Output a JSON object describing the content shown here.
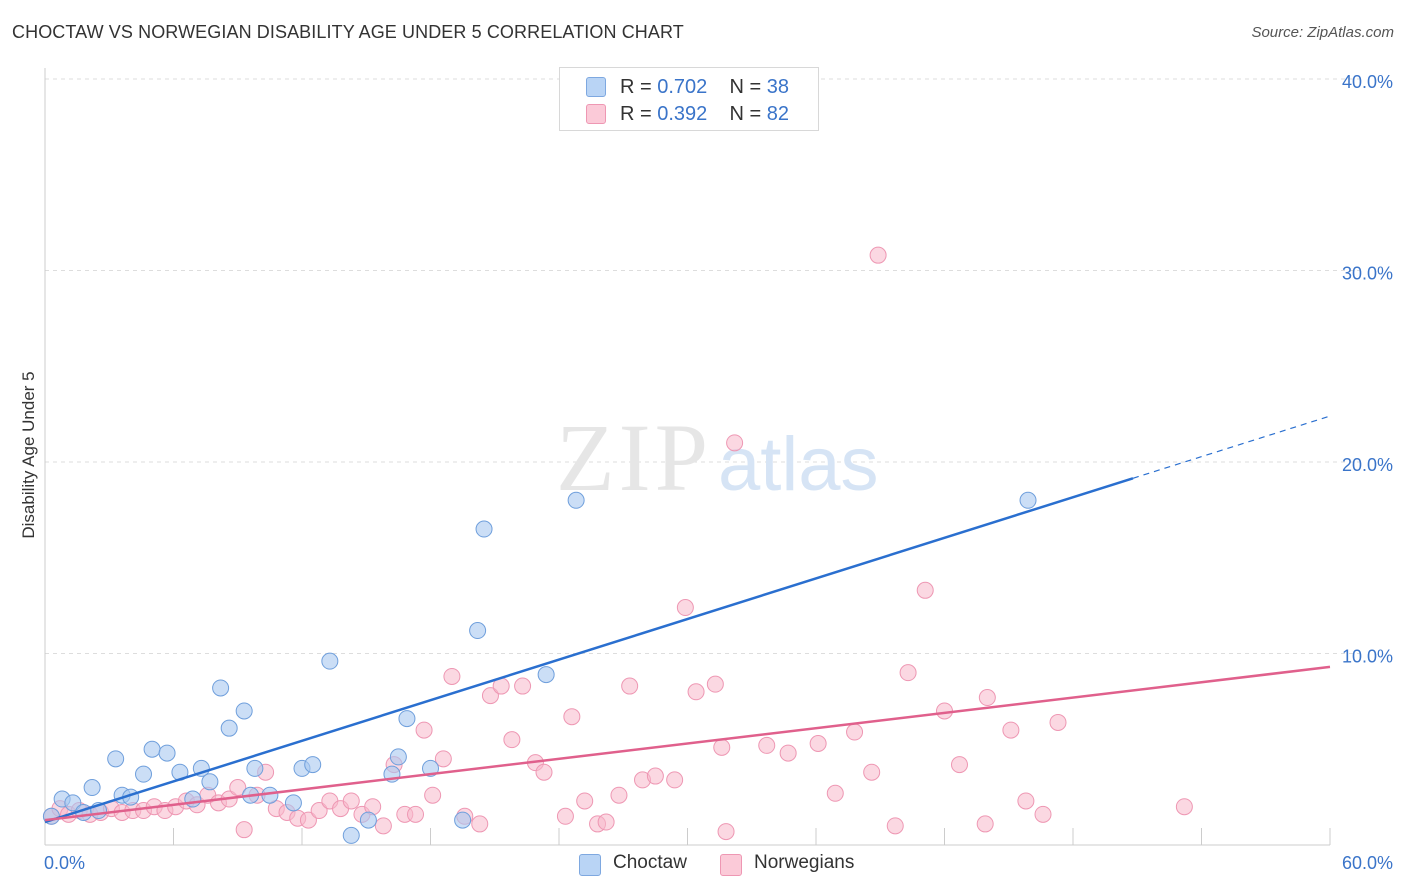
{
  "title": "CHOCTAW VS NORWEGIAN DISABILITY AGE UNDER 5 CORRELATION CHART",
  "source": "Source: ZipAtlas.com",
  "watermark": {
    "zip": "ZIP",
    "atlas": "atlas"
  },
  "legend": {
    "series1": {
      "r_label": "R = ",
      "r_value": "0.702",
      "n_label": "N = ",
      "n_value": "38"
    },
    "series2": {
      "r_label": "R = ",
      "r_value": "0.392",
      "n_label": "N = ",
      "n_value": "82"
    }
  },
  "chart_data": {
    "type": "scatter",
    "title": "CHOCTAW VS NORWEGIAN DISABILITY AGE UNDER 5 CORRELATION CHART",
    "xlabel": "",
    "ylabel": "Disability Age Under 5",
    "xlim": [
      0,
      60
    ],
    "ylim": [
      0,
      41
    ],
    "x_tick_labels": [
      "0.0%",
      "60.0%"
    ],
    "y_ticks": [
      10,
      20,
      30,
      40
    ],
    "y_tick_labels": [
      "10.0%",
      "20.0%",
      "30.0%",
      "40.0%"
    ],
    "colors": {
      "choctaw": "#a8c8f0",
      "choctaw_line": "#2a6fcf",
      "norwegians": "#f7b8cb",
      "norwegians_line": "#e0608c",
      "tick_label": "#3a74c9"
    },
    "series": [
      {
        "name": "Choctaw",
        "r": 0.702,
        "n": 38,
        "trend": {
          "x0": 0,
          "y0": 1.2,
          "x1": 60,
          "y1": 22.4,
          "solid_until_x": 50.8
        },
        "points": [
          [
            0.3,
            1.5
          ],
          [
            0.8,
            2.4
          ],
          [
            1.3,
            2.2
          ],
          [
            1.8,
            1.7
          ],
          [
            2.2,
            3.0
          ],
          [
            2.5,
            1.8
          ],
          [
            3.3,
            4.5
          ],
          [
            3.6,
            2.6
          ],
          [
            4.0,
            2.5
          ],
          [
            4.6,
            3.7
          ],
          [
            5.0,
            5.0
          ],
          [
            5.7,
            4.8
          ],
          [
            6.3,
            3.8
          ],
          [
            6.9,
            2.4
          ],
          [
            7.3,
            4.0
          ],
          [
            7.7,
            3.3
          ],
          [
            8.2,
            8.2
          ],
          [
            8.6,
            6.1
          ],
          [
            9.3,
            7.0
          ],
          [
            9.8,
            4.0
          ],
          [
            9.6,
            2.6
          ],
          [
            10.5,
            2.6
          ],
          [
            11.6,
            2.2
          ],
          [
            12.0,
            4.0
          ],
          [
            12.5,
            4.2
          ],
          [
            13.3,
            9.6
          ],
          [
            14.3,
            0.5
          ],
          [
            15.1,
            1.3
          ],
          [
            16.2,
            3.7
          ],
          [
            16.5,
            4.6
          ],
          [
            16.9,
            6.6
          ],
          [
            18.0,
            4.0
          ],
          [
            19.5,
            1.3
          ],
          [
            20.2,
            11.2
          ],
          [
            20.5,
            16.5
          ],
          [
            23.4,
            8.9
          ],
          [
            24.8,
            18.0
          ],
          [
            45.9,
            18.0
          ]
        ]
      },
      {
        "name": "Norwegians",
        "r": 0.392,
        "n": 82,
        "trend": {
          "x0": 0,
          "y0": 1.3,
          "x1": 60,
          "y1": 9.3
        },
        "points": [
          [
            0.3,
            1.5
          ],
          [
            0.7,
            1.9
          ],
          [
            1.1,
            1.6
          ],
          [
            1.6,
            1.8
          ],
          [
            2.1,
            1.6
          ],
          [
            2.6,
            1.7
          ],
          [
            3.1,
            1.9
          ],
          [
            3.6,
            1.7
          ],
          [
            4.1,
            1.8
          ],
          [
            4.6,
            1.8
          ],
          [
            5.1,
            2.0
          ],
          [
            5.6,
            1.8
          ],
          [
            6.1,
            2.0
          ],
          [
            6.6,
            2.3
          ],
          [
            7.1,
            2.1
          ],
          [
            7.6,
            2.6
          ],
          [
            8.1,
            2.2
          ],
          [
            8.6,
            2.4
          ],
          [
            9.0,
            3.0
          ],
          [
            9.3,
            0.8
          ],
          [
            9.9,
            2.6
          ],
          [
            10.3,
            3.8
          ],
          [
            10.8,
            1.9
          ],
          [
            11.3,
            1.7
          ],
          [
            11.8,
            1.4
          ],
          [
            12.3,
            1.3
          ],
          [
            12.8,
            1.8
          ],
          [
            13.3,
            2.3
          ],
          [
            13.8,
            1.9
          ],
          [
            14.3,
            2.3
          ],
          [
            14.8,
            1.6
          ],
          [
            15.3,
            2.0
          ],
          [
            15.8,
            1.0
          ],
          [
            16.3,
            4.2
          ],
          [
            16.8,
            1.6
          ],
          [
            17.3,
            1.6
          ],
          [
            17.7,
            6.0
          ],
          [
            18.1,
            2.6
          ],
          [
            18.6,
            4.5
          ],
          [
            19.0,
            8.8
          ],
          [
            19.6,
            1.5
          ],
          [
            20.3,
            1.1
          ],
          [
            20.8,
            7.8
          ],
          [
            21.3,
            8.3
          ],
          [
            21.8,
            5.5
          ],
          [
            22.3,
            8.3
          ],
          [
            22.9,
            4.3
          ],
          [
            23.3,
            3.8
          ],
          [
            24.3,
            1.5
          ],
          [
            24.6,
            6.7
          ],
          [
            25.2,
            2.3
          ],
          [
            25.8,
            1.1
          ],
          [
            26.2,
            1.2
          ],
          [
            26.8,
            2.6
          ],
          [
            27.3,
            8.3
          ],
          [
            27.9,
            3.4
          ],
          [
            28.5,
            3.6
          ],
          [
            29.4,
            3.4
          ],
          [
            29.9,
            12.4
          ],
          [
            30.4,
            8.0
          ],
          [
            31.3,
            8.4
          ],
          [
            31.6,
            5.1
          ],
          [
            31.8,
            0.7
          ],
          [
            32.2,
            21.0
          ],
          [
            33.7,
            5.2
          ],
          [
            34.7,
            4.8
          ],
          [
            36.1,
            5.3
          ],
          [
            36.9,
            2.7
          ],
          [
            37.8,
            5.9
          ],
          [
            38.6,
            3.8
          ],
          [
            38.9,
            30.8
          ],
          [
            39.7,
            1.0
          ],
          [
            40.3,
            9.0
          ],
          [
            41.1,
            13.3
          ],
          [
            42.0,
            7.0
          ],
          [
            42.7,
            4.2
          ],
          [
            43.9,
            1.1
          ],
          [
            44.0,
            7.7
          ],
          [
            45.1,
            6.0
          ],
          [
            45.8,
            2.3
          ],
          [
            46.6,
            1.6
          ],
          [
            47.3,
            6.4
          ],
          [
            53.2,
            2.0
          ]
        ]
      }
    ]
  },
  "bottom_legend": {
    "items": [
      "Choctaw",
      "Norwegians"
    ]
  }
}
